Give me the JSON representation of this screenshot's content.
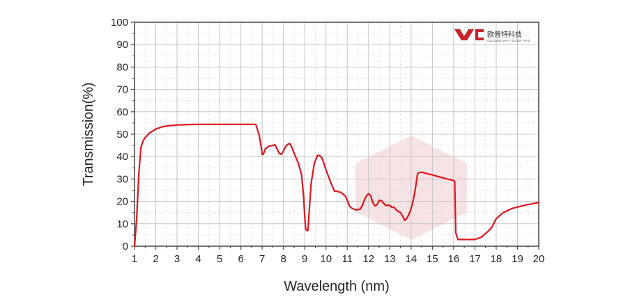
{
  "chart_data": {
    "type": "line",
    "title": "",
    "xlabel": "Wavelength (nm)",
    "ylabel": "Transmission(%)",
    "xlim": [
      1,
      20
    ],
    "ylim": [
      0,
      100
    ],
    "xticks": [
      1,
      2,
      3,
      4,
      5,
      6,
      7,
      8,
      9,
      10,
      11,
      12,
      13,
      14,
      15,
      16,
      17,
      18,
      19,
      20
    ],
    "yticks": [
      0,
      10,
      20,
      30,
      40,
      50,
      60,
      70,
      80,
      90,
      100
    ],
    "grid": true,
    "line_color": "#e0141e",
    "series": [
      {
        "x": [
          1.0,
          1.1,
          1.2,
          1.3,
          1.4,
          1.5,
          1.7,
          2.0,
          2.3,
          2.6,
          3.0,
          3.5,
          4.0,
          5.0,
          6.0,
          6.7,
          6.85,
          6.95,
          7.0,
          7.05,
          7.15,
          7.3,
          7.5,
          7.6,
          7.7,
          7.8,
          7.9,
          8.0,
          8.1,
          8.2,
          8.3,
          8.4,
          8.5,
          8.7,
          8.85,
          8.95,
          9.0,
          9.05,
          9.1,
          9.15,
          9.2,
          9.3,
          9.45,
          9.6,
          9.7,
          9.8,
          9.9,
          10.0,
          10.2,
          10.4,
          10.5,
          10.7,
          10.9,
          11.0,
          11.1,
          11.2,
          11.4,
          11.6,
          11.7,
          11.8,
          11.9,
          12.0,
          12.1,
          12.2,
          12.3,
          12.4,
          12.5,
          12.6,
          12.7,
          12.8,
          12.9,
          13.0,
          13.1,
          13.2,
          13.3,
          13.4,
          13.5,
          13.6,
          13.7,
          13.8,
          13.9,
          14.0,
          14.1,
          14.2,
          14.3,
          14.4,
          14.5,
          14.7,
          15.0,
          15.5,
          16.0,
          16.05,
          16.1,
          16.2,
          16.5,
          16.8,
          17.0,
          17.3,
          17.6,
          17.8,
          17.9,
          18.0,
          18.3,
          18.7,
          19.0,
          19.5,
          20.0
        ],
        "y": [
          0,
          12,
          32,
          44,
          47,
          48.5,
          50.5,
          52.3,
          53.3,
          53.8,
          54.1,
          54.3,
          54.4,
          54.4,
          54.4,
          54.4,
          50,
          44.5,
          41,
          41,
          43.5,
          44.6,
          45,
          45.3,
          43.5,
          41.5,
          41,
          42.5,
          44.5,
          45.5,
          45.8,
          44,
          41.5,
          37,
          32,
          22,
          13,
          7.5,
          7,
          7,
          14,
          28,
          37,
          40.5,
          40.5,
          39.5,
          37,
          34,
          29,
          24.5,
          24.5,
          24,
          22.5,
          20.5,
          18,
          17,
          16.2,
          16.5,
          18,
          20.5,
          22.5,
          23.5,
          22.5,
          19.5,
          18,
          18.5,
          20.5,
          20.3,
          19.3,
          18.2,
          18.3,
          18.2,
          17.3,
          17.4,
          16.2,
          15.5,
          15,
          13.5,
          11.5,
          12.5,
          14.3,
          16.8,
          20.5,
          25.5,
          32.2,
          33,
          33,
          32.5,
          31.8,
          30.5,
          29.3,
          28.8,
          6,
          3,
          3,
          3,
          3,
          4,
          6.5,
          8.5,
          10.5,
          12.3,
          14.8,
          16.7,
          17.5,
          18.6,
          19.5
        ]
      }
    ]
  },
  "logo": {
    "brand_cn": "欧普特科技",
    "brand_en": "GOLDEN WAY SCIENTIFIC",
    "color": "#c8232c"
  }
}
